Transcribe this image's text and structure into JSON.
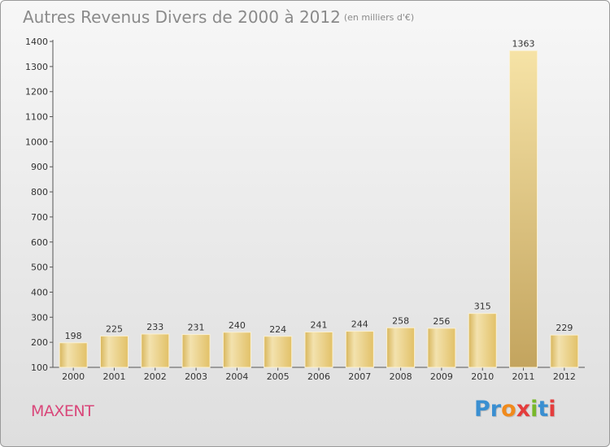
{
  "header": {
    "title": "Autres Revenus Divers de 2000 à 2012",
    "unit": "(en milliers d'€)"
  },
  "footer": {
    "commune": "MAXENT",
    "logo_text": "Proxiti"
  },
  "colors": {
    "bar": "#eacb75",
    "bar_highlight": "#f3e2ae",
    "bar_peak": "#c9ab62",
    "commune_text": "#d9477a",
    "logo_letters": [
      "#3a8fd1",
      "#3a8fd1",
      "#f08a1c",
      "#e43d3d",
      "#78b82a",
      "#3a8fd1",
      "#e43d3d"
    ]
  },
  "chart_data": {
    "type": "bar",
    "categories": [
      "2000",
      "2001",
      "2002",
      "2003",
      "2004",
      "2005",
      "2006",
      "2007",
      "2008",
      "2009",
      "2010",
      "2011",
      "2012"
    ],
    "values": [
      198,
      225,
      233,
      231,
      240,
      224,
      241,
      244,
      258,
      256,
      315,
      1363,
      229
    ],
    "title": "Autres Revenus Divers de 2000 à 2012",
    "subtitle": "(en milliers d'€)",
    "xlabel": "",
    "ylabel": "",
    "ylim": [
      100,
      1400
    ],
    "yticks": [
      100,
      200,
      300,
      400,
      500,
      600,
      700,
      800,
      900,
      1000,
      1100,
      1200,
      1300,
      1400
    ],
    "grid": false,
    "legend": "none"
  }
}
